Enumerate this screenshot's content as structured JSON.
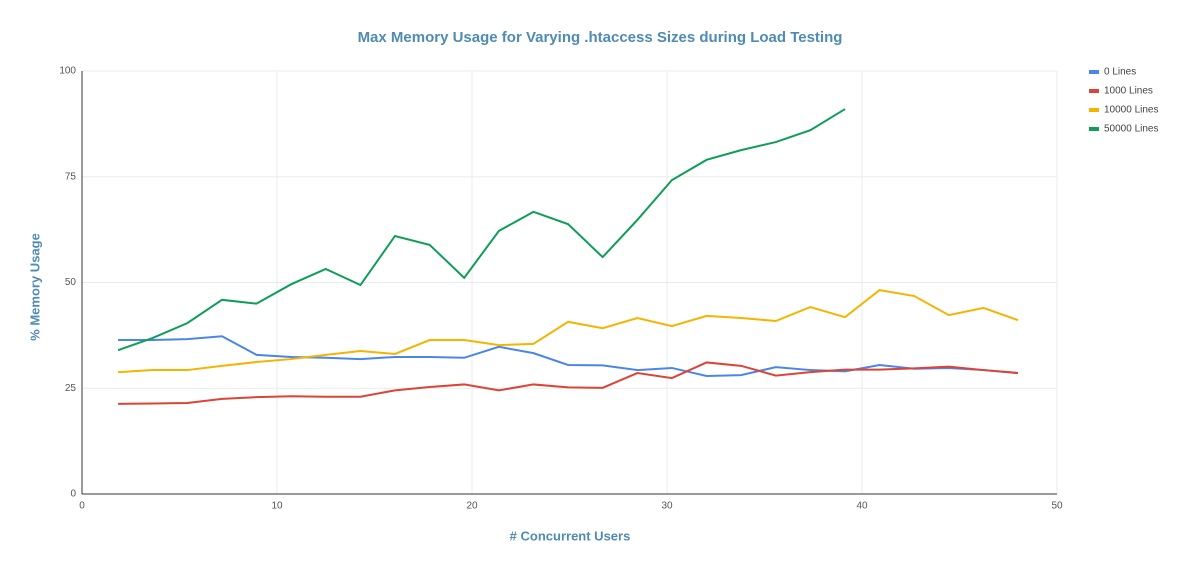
{
  "chart_data": {
    "type": "line",
    "title": "Max Memory Usage for Varying .htaccess Sizes during Load Testing",
    "x_label": "# Concurrent Users",
    "y_label": "% Memory Usage",
    "x": [
      1.85,
      3.63,
      5.4,
      7.18,
      8.95,
      10.73,
      12.5,
      14.28,
      16.05,
      17.83,
      19.6,
      21.38,
      23.15,
      24.93,
      26.7,
      28.48,
      30.25,
      32.03,
      33.8,
      35.58,
      37.35,
      39.13,
      40.9,
      42.68,
      44.45,
      46.23,
      48
    ],
    "series": [
      {
        "name": "0 Lines",
        "color": "#4a86e8",
        "values": [
          36.4,
          36.4,
          36.6,
          37.3,
          32.9,
          32.4,
          32.2,
          31.9,
          32.4,
          32.4,
          32.2,
          34.8,
          33.3,
          30.5,
          30.4,
          29.3,
          29.8,
          27.9,
          28.1,
          30,
          29.3,
          29,
          30.5,
          29.6,
          29.8,
          29.3,
          28.6
        ]
      },
      {
        "name": "1000 Lines",
        "color": "#db4437",
        "values": [
          21.3,
          21.4,
          21.5,
          22.5,
          22.9,
          23.1,
          23,
          23,
          24.5,
          25.3,
          25.9,
          24.5,
          25.9,
          25.2,
          25.1,
          28.6,
          27.4,
          31.1,
          30.3,
          28,
          28.8,
          29.4,
          29.4,
          29.7,
          30.1,
          29.3,
          28.6
        ]
      },
      {
        "name": "10000 Lines",
        "color": "#f4b400",
        "values": [
          28.8,
          29.3,
          29.3,
          30.3,
          31.2,
          31.9,
          32.9,
          33.8,
          33.1,
          36.4,
          36.4,
          35.2,
          35.5,
          40.7,
          39.2,
          41.6,
          39.7,
          42.1,
          41.6,
          40.9,
          44.2,
          41.8,
          48.2,
          46.8,
          42.3,
          44,
          41.1
        ]
      },
      {
        "name": "50000 Lines",
        "color": "#0f9d58",
        "values": [
          34,
          36.9,
          40.4,
          45.9,
          45,
          49.6,
          53.2,
          49.4,
          61,
          58.9,
          51.1,
          62.2,
          66.7,
          63.8,
          56,
          64.8,
          74.2,
          79,
          81.3,
          83.2,
          86,
          91,
          null,
          null,
          null,
          null,
          null
        ]
      }
    ],
    "xlim": [
      0,
      50
    ],
    "xticks": [
      0,
      10,
      20,
      30,
      40,
      50
    ],
    "ylim": [
      0,
      100
    ],
    "yticks": [
      0,
      25,
      50,
      75,
      100
    ],
    "grid": true,
    "legend": "right"
  }
}
